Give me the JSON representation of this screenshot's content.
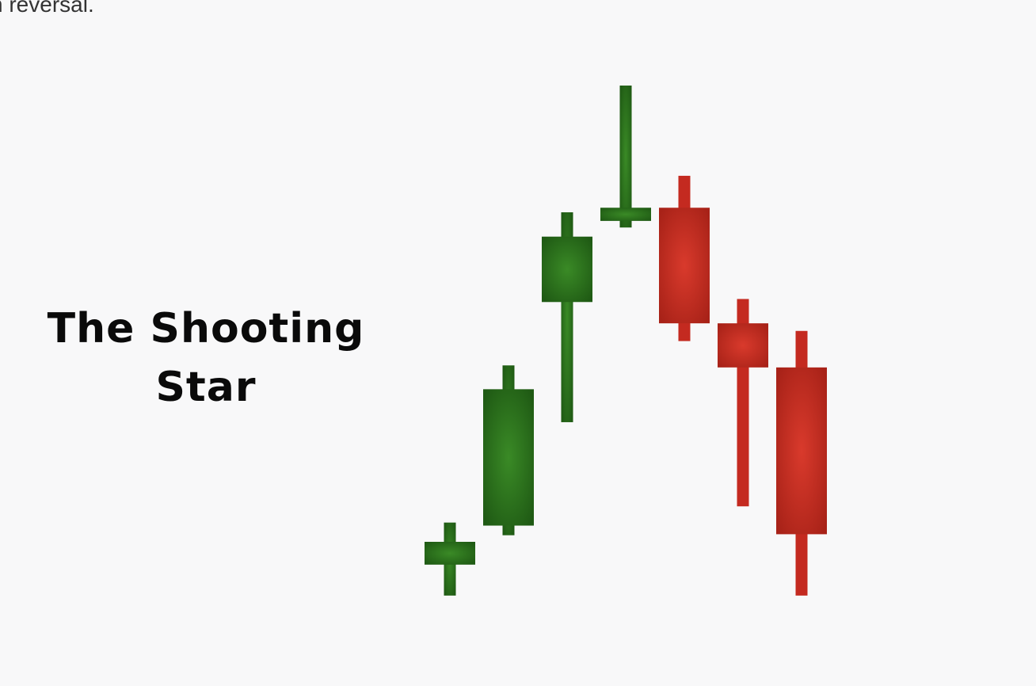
{
  "page": {
    "top_text": "n reversal."
  },
  "colors": {
    "bullish": "#2e6b1f",
    "bullish_light": "#3a8a26",
    "bullish_dark": "#1f5a14",
    "bearish": "#c42a20",
    "bearish_light": "#d93a2c",
    "bearish_dark": "#a82218",
    "background": "#f8f8f9"
  },
  "chart_data": {
    "type": "candlestick",
    "title_lines": [
      "The Shooting",
      "Star"
    ],
    "ylim": [
      0,
      100
    ],
    "candles": [
      {
        "direction": "up",
        "open": 5.5,
        "high": 13.8,
        "low": -0.6,
        "close": 10.0
      },
      {
        "direction": "up",
        "open": 13.2,
        "high": 44.8,
        "low": 11.3,
        "close": 40.1
      },
      {
        "direction": "up",
        "open": 57.3,
        "high": 75.0,
        "low": 33.6,
        "close": 70.2
      },
      {
        "direction": "up",
        "open": 73.3,
        "high": 100.0,
        "low": 72.0,
        "close": 75.9
      },
      {
        "direction": "down",
        "open": 75.9,
        "high": 82.2,
        "low": 49.6,
        "close": 53.1
      },
      {
        "direction": "down",
        "open": 53.1,
        "high": 57.9,
        "low": 17.0,
        "close": 44.4
      },
      {
        "direction": "down",
        "open": 44.4,
        "high": 51.6,
        "low": -0.6,
        "close": 11.5
      }
    ]
  }
}
